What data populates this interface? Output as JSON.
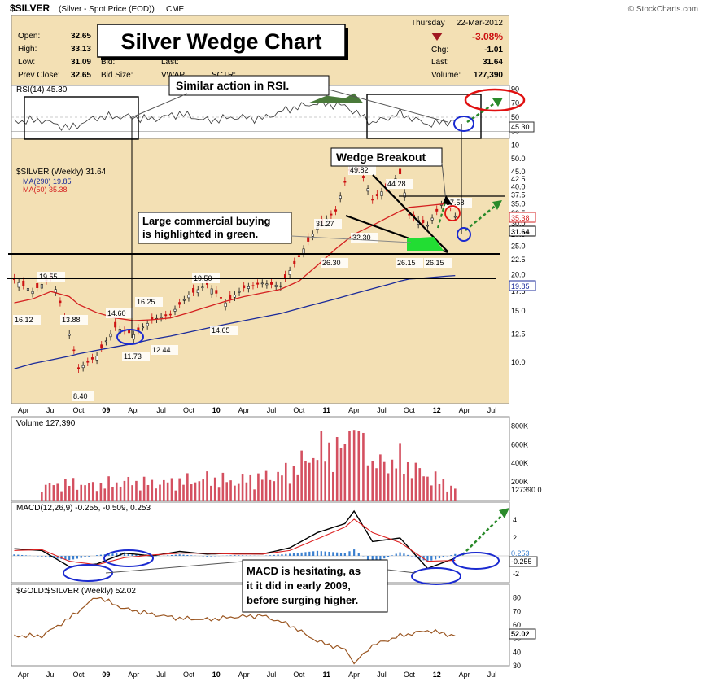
{
  "header": {
    "symbol": "$SILVER",
    "description": "(Silver - Spot Price (EOD))",
    "exchange": "CME",
    "source": "© StockCharts.com",
    "day": "Thursday",
    "date": "22-Mar-2012"
  },
  "quote": {
    "open_label": "Open:",
    "open": "32.65",
    "high_label": "High:",
    "high": "33.13",
    "low_label": "Low:",
    "low": "31.09",
    "prev_label": "Prev Close:",
    "prev": "32.65",
    "bid_label": "Bid:",
    "bidsize_label": "Bid Size:",
    "last_label": "Last:",
    "vwap_label": "VWAP:",
    "sctr_label": "SCTR:",
    "pct_change": "-3.08%",
    "chg_label": "Chg:",
    "chg": "-1.01",
    "last2_label": "Last:",
    "last": "31.64",
    "volume_label": "Volume:",
    "volume": "127,390"
  },
  "colors": {
    "price_bg": "#f3e0b4",
    "panel_bg": "#ffffff",
    "up": "#111111",
    "down": "#cc1111",
    "ma290": "#1a2a9a",
    "ma50": "#d42020",
    "volume": "#d45060",
    "macd": "#000000",
    "signal": "#dd2222",
    "hist": "#3a7fcf",
    "ratio": "#9a5520",
    "rsi_fill": "#4a7a3a",
    "green_zone": "#22dd33",
    "annot_green": "#2a8a2a",
    "annot_blue": "#1a2ad0",
    "annot_red": "#e01010"
  },
  "annotations": {
    "title": "Silver Wedge Chart",
    "rsi_note": "Similar action in RSI.",
    "breakout": "Wedge Breakout",
    "commercial": "Large commercial buying\nis highlighted in green.",
    "macd_note": "MACD is hesitating, as\nit it did in early 2009,\nbefore surging higher."
  },
  "chart_data": [
    {
      "type": "line",
      "panel": "RSI",
      "title": "RSI(14) 45.30",
      "last_value": 45.3,
      "ylim": [
        20,
        95
      ],
      "yticks": [
        10,
        30,
        50,
        70,
        90
      ],
      "levels": [
        30,
        70
      ],
      "x": [
        "2008-03",
        "2008-06",
        "2008-09",
        "2008-12",
        "2009-03",
        "2009-06",
        "2009-09",
        "2009-12",
        "2010-03",
        "2010-06",
        "2010-09",
        "2010-12",
        "2011-03",
        "2011-06",
        "2011-09",
        "2011-12",
        "2012-03"
      ],
      "values": [
        44,
        46,
        34,
        50,
        51,
        47,
        55,
        45,
        50,
        48,
        62,
        70,
        66,
        42,
        55,
        40,
        45.3
      ]
    },
    {
      "type": "line",
      "panel": "price",
      "title": "$SILVER (Weekly) 31.64",
      "scale": "log",
      "ylim": [
        7.5,
        55
      ],
      "yticks": [
        10.0,
        12.5,
        15.0,
        17.5,
        20.0,
        22.5,
        25.0,
        27.5,
        30.0,
        32.5,
        35.0,
        37.5,
        40.0,
        42.5,
        45.0,
        50.0
      ],
      "xticks": [
        "Apr",
        "Jul",
        "Oct",
        "09",
        "Apr",
        "Jul",
        "Oct",
        "10",
        "Apr",
        "Jul",
        "Oct",
        "11",
        "Apr",
        "Jul",
        "Oct",
        "12",
        "Apr",
        "Jul"
      ],
      "x": [
        "2008-03",
        "2008-05",
        "2008-07",
        "2008-09",
        "2008-10",
        "2008-12",
        "2009-02",
        "2009-04",
        "2009-06",
        "2009-08",
        "2009-10",
        "2009-12",
        "2010-02",
        "2010-04",
        "2010-06",
        "2010-08",
        "2010-10",
        "2010-12",
        "2011-02",
        "2011-04",
        "2011-06",
        "2011-08",
        "2011-09",
        "2011-10",
        "2011-12",
        "2012-02",
        "2012-03"
      ],
      "series": [
        {
          "name": "$SILVER (Weekly)",
          "values": [
            19.2,
            17.5,
            19.55,
            12.5,
            9.5,
            10.5,
            13.2,
            12.44,
            14.0,
            14.6,
            17.0,
            18.5,
            16.0,
            18.0,
            18.7,
            18.3,
            23.0,
            29.0,
            33.0,
            49.82,
            36.0,
            41.0,
            44.28,
            32.0,
            29.5,
            36.5,
            31.64
          ]
        },
        {
          "name": "MA(290)",
          "values": [
            9.5,
            9.9,
            10.2,
            10.5,
            10.7,
            11.0,
            11.3,
            11.6,
            12.0,
            12.3,
            12.7,
            13.1,
            13.5,
            13.9,
            14.3,
            14.7,
            15.3,
            15.9,
            16.5,
            17.2,
            17.9,
            18.6,
            19.0,
            19.3,
            19.5,
            19.75,
            19.85
          ]
        },
        {
          "name": "MA(50)",
          "values": [
            16.0,
            16.5,
            17.5,
            16.8,
            15.8,
            14.8,
            14.2,
            13.9,
            14.0,
            14.2,
            14.8,
            15.5,
            16.2,
            16.8,
            17.3,
            17.8,
            19.0,
            21.5,
            24.5,
            27.5,
            29.5,
            31.8,
            33.0,
            34.0,
            34.5,
            35.0,
            35.38
          ]
        }
      ],
      "labels": [
        {
          "text": "19.55"
        },
        {
          "text": "16.12"
        },
        {
          "text": "13.88"
        },
        {
          "text": "8.40"
        },
        {
          "text": "14.60"
        },
        {
          "text": "11.73"
        },
        {
          "text": "16.25"
        },
        {
          "text": "12.44"
        },
        {
          "text": "19.50"
        },
        {
          "text": "14.65"
        },
        {
          "text": "31.27"
        },
        {
          "text": "26.30"
        },
        {
          "text": "49.82"
        },
        {
          "text": "32.30"
        },
        {
          "text": "44.28"
        },
        {
          "text": "26.15"
        },
        {
          "text": "26.15"
        },
        {
          "text": "37.58"
        }
      ],
      "right_labels": [
        {
          "text": "35.38"
        },
        {
          "text": "31.64"
        },
        {
          "text": "19.85"
        }
      ],
      "legend": [
        {
          "name": "MA(290) 19.85"
        },
        {
          "name": "MA(50) 35.38"
        }
      ]
    },
    {
      "type": "bar",
      "panel": "volume",
      "title": "Volume 127,390",
      "ylim": [
        0,
        900000
      ],
      "yticks": [
        "200K",
        "400K",
        "600K",
        "800K"
      ],
      "last_label": "127390.0",
      "x": [
        "2008-06",
        "2008-09",
        "2008-12",
        "2009-03",
        "2009-06",
        "2009-09",
        "2009-12",
        "2010-03",
        "2010-06",
        "2010-09",
        "2010-12",
        "2011-03",
        "2011-04",
        "2011-06",
        "2011-09",
        "2011-12",
        "2012-03"
      ],
      "values": [
        150000,
        180000,
        160000,
        200000,
        180000,
        200000,
        230000,
        200000,
        240000,
        300000,
        520000,
        550000,
        860000,
        380000,
        420000,
        260000,
        127390
      ]
    },
    {
      "type": "line",
      "panel": "MACD",
      "title": "MACD(12,26,9) -0.255, -0.509, 0.253",
      "ylim": [
        -3,
        6
      ],
      "yticks": [
        -2,
        2,
        4
      ],
      "right_labels": [
        {
          "text": "0.253"
        },
        {
          "text": "-0.255"
        }
      ],
      "x": [
        "2008-03",
        "2008-06",
        "2008-09",
        "2008-12",
        "2009-03",
        "2009-06",
        "2009-09",
        "2009-12",
        "2010-03",
        "2010-06",
        "2010-09",
        "2010-12",
        "2011-03",
        "2011-04",
        "2011-06",
        "2011-09",
        "2011-12",
        "2012-03"
      ],
      "series": [
        {
          "name": "MACD",
          "values": [
            0.8,
            0.6,
            -1.2,
            -0.9,
            0.3,
            0.0,
            0.5,
            0.2,
            0.3,
            0.2,
            0.9,
            2.6,
            3.6,
            5.0,
            1.6,
            2.0,
            -1.4,
            -0.255
          ]
        },
        {
          "name": "Signal",
          "values": [
            0.6,
            0.7,
            -0.6,
            -1.0,
            -0.2,
            0.1,
            0.3,
            0.3,
            0.2,
            0.2,
            0.6,
            1.9,
            3.2,
            4.1,
            2.6,
            1.5,
            -0.6,
            -0.509
          ]
        }
      ]
    },
    {
      "type": "line",
      "panel": "ratio",
      "title": "$GOLD:$SILVER (Weekly) 52.02",
      "last_label": "52.02",
      "ylim": [
        30,
        90
      ],
      "yticks": [
        30,
        40,
        50,
        60,
        70,
        80
      ],
      "x": [
        "2008-03",
        "2008-06",
        "2008-09",
        "2008-12",
        "2009-03",
        "2009-06",
        "2009-09",
        "2009-12",
        "2010-03",
        "2010-06",
        "2010-09",
        "2010-12",
        "2011-03",
        "2011-04",
        "2011-06",
        "2011-09",
        "2011-12",
        "2012-03"
      ],
      "values": [
        52,
        52,
        65,
        81,
        72,
        68,
        65,
        64,
        66,
        67,
        60,
        48,
        42,
        32,
        45,
        52,
        56,
        52.02
      ]
    }
  ]
}
